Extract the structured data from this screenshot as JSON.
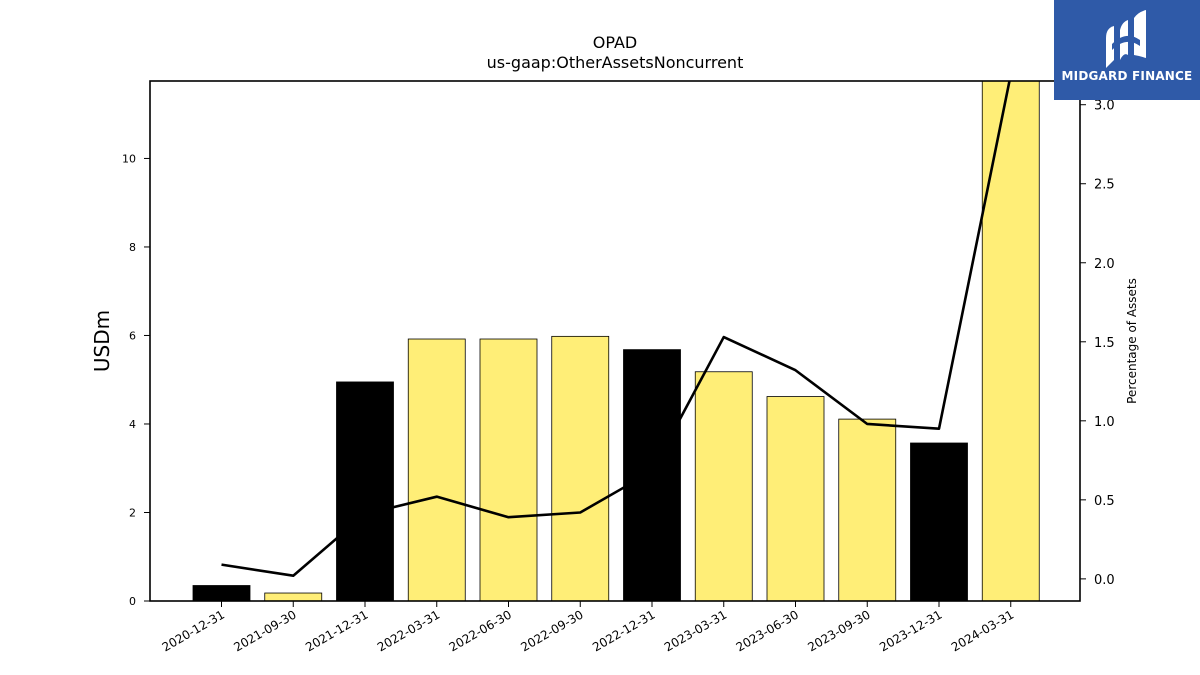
{
  "chart_data": {
    "type": "bar",
    "title": "OPAD",
    "subtitle": "us-gaap:OtherAssetsNoncurrent",
    "ylabel": "USDm",
    "y2label": "Percentage of Assets",
    "categories": [
      "2020-12-31",
      "2021-09-30",
      "2021-12-31",
      "2022-03-31",
      "2022-06-30",
      "2022-09-30",
      "2022-12-31",
      "2023-03-31",
      "2023-06-30",
      "2023-09-30",
      "2023-12-31",
      "2024-03-31"
    ],
    "series": [
      {
        "values": [
          0.35,
          0.18,
          4.95,
          5.92,
          5.92,
          5.98,
          5.68,
          5.18,
          4.62,
          4.11,
          3.57,
          11.75
        ],
        "colors": [
          "#000000",
          "#ffee77",
          "#000000",
          "#ffee77",
          "#ffee77",
          "#ffee77",
          "#000000",
          "#ffee77",
          "#ffee77",
          "#ffee77",
          "#000000",
          "#ffee77"
        ]
      },
      {
        "type": "line",
        "axis": "right",
        "color": "#000000",
        "values": [
          0.09,
          0.02,
          0.41,
          0.52,
          0.39,
          0.42,
          0.68,
          1.53,
          1.32,
          0.98,
          0.95,
          3.19
        ]
      }
    ],
    "ylim": [
      0,
      11.75
    ],
    "yticks": [
      0,
      2,
      4,
      6,
      8,
      10
    ],
    "y2lim": [
      -0.14,
      3.15
    ],
    "y2ticks": [
      "0.0",
      "0.5",
      "1.0",
      "1.5",
      "2.0",
      "2.5",
      "3.0"
    ],
    "grid": false
  },
  "logo": {
    "text": "MIDGARD FINANCE"
  }
}
